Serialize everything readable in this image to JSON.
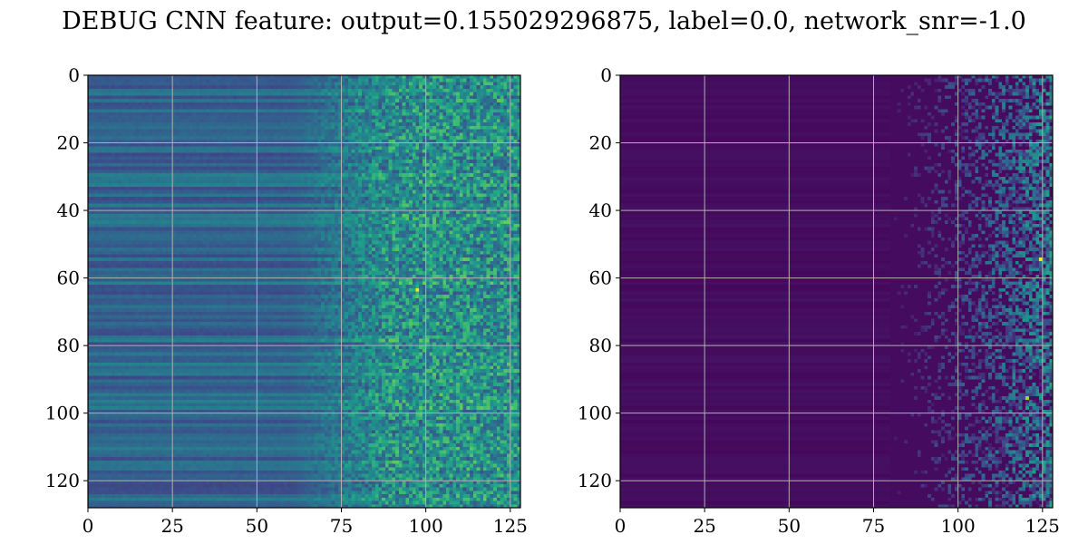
{
  "title": "DEBUG CNN feature: output=0.155029296875, label=0.0, network_snr=-1.0",
  "chart_data": [
    {
      "type": "heatmap",
      "colormap": "viridis",
      "grid": true,
      "grid_color": "#b0b0b0",
      "xlim": [
        0,
        128
      ],
      "ylim": [
        128,
        0
      ],
      "x_ticks": [
        0,
        25,
        50,
        75,
        100,
        125
      ],
      "y_ticks": [
        0,
        20,
        40,
        60,
        80,
        100,
        120
      ],
      "x_tick_labels": [
        "0",
        "25",
        "50",
        "75",
        "100",
        "125"
      ],
      "y_tick_labels": [
        "0",
        "20",
        "40",
        "60",
        "80",
        "100",
        "120"
      ],
      "shape": [
        128,
        128
      ],
      "value_range": [
        0,
        1
      ],
      "description_of_values": "columns 0-~60 show near-constant horizontal bands (mid values ~0.2-0.45); columns ~60-128 noisy with higher values; hotspot near column 97, row 63"
    },
    {
      "type": "heatmap",
      "colormap": "viridis",
      "grid": true,
      "grid_color": "#b0b0b0",
      "xlim": [
        0,
        128
      ],
      "ylim": [
        128,
        0
      ],
      "x_ticks": [
        0,
        25,
        50,
        75,
        100,
        125
      ],
      "y_ticks": [
        0,
        20,
        40,
        60,
        80,
        100,
        120
      ],
      "x_tick_labels": [
        "0",
        "25",
        "50",
        "75",
        "100",
        "125"
      ],
      "y_tick_labels": [
        "0",
        "20",
        "40",
        "60",
        "80",
        "100",
        "120"
      ],
      "shape": [
        128,
        128
      ],
      "value_range": [
        0,
        1
      ],
      "description_of_values": "values near 0 for columns 0-~80; sparse speckle increasing toward columns ~100-128; hotspot near column 124, row 54"
    }
  ]
}
